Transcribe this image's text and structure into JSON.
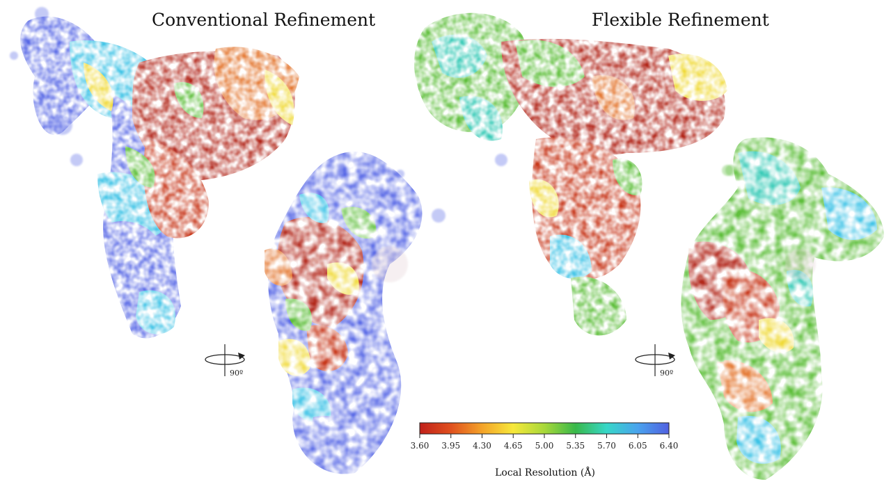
{
  "panels": {
    "left_title": "Conventional Refinement",
    "right_title": "Flexible Refinement"
  },
  "rotation": {
    "left_label": "90º",
    "right_label": "90º",
    "icon": "rotate-around-vertical-axis-icon"
  },
  "colorbar": {
    "label": "Local Resolution (Å)",
    "ticks": [
      "3.60",
      "3.95",
      "4.30",
      "4.65",
      "5.00",
      "5.35",
      "5.70",
      "6.05",
      "6.40"
    ],
    "colors": [
      "#c0201a",
      "#e0501e",
      "#f4a329",
      "#f7e83a",
      "#a8d83a",
      "#38b84a",
      "#37d7c8",
      "#4aa3ee",
      "#5060e0"
    ]
  },
  "palette": {
    "red": "#b32a1e",
    "orange": "#e3742c",
    "yellow": "#f0da3a",
    "green": "#5fbf3c",
    "teal": "#33c9b5",
    "cyan": "#3fc3e6",
    "blue": "#5a6ae6"
  }
}
